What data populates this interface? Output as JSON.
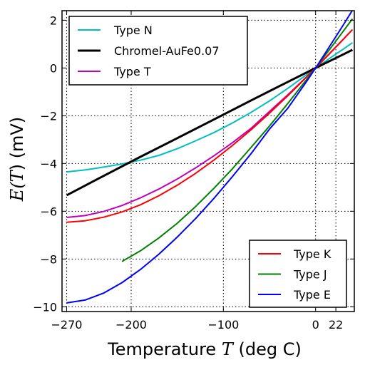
{
  "chart_data": {
    "type": "line",
    "xlabel_prefix": "Temperature ",
    "xlabel_math": "T",
    "xlabel_suffix": " (deg C)",
    "ylabel_prefix": "E(",
    "ylabel_math": "T",
    "ylabel_suffix": ")  (mV)",
    "xlim": [
      -275,
      42
    ],
    "ylim": [
      -10.2,
      2.4
    ],
    "xticks": [
      -270,
      -200,
      -100,
      0,
      22
    ],
    "xtick_labels": [
      "−270",
      "−200",
      "−100",
      "0",
      "22"
    ],
    "yticks": [
      2,
      0,
      -2,
      -4,
      -6,
      -8,
      -10
    ],
    "ytick_labels": [
      "2",
      "0",
      "−2",
      "−4",
      "−6",
      "−8",
      "−10"
    ],
    "grid": true,
    "legends": [
      {
        "placement": "top-left",
        "series": [
          0,
          1,
          2
        ]
      },
      {
        "placement": "bottom-right",
        "series": [
          3,
          4,
          5
        ]
      }
    ],
    "series": [
      {
        "name": "Type N",
        "color": "#00bfbf",
        "linewidth": 2,
        "x": [
          -270,
          -250,
          -230,
          -210,
          -190,
          -170,
          -150,
          -130,
          -110,
          -90,
          -70,
          -50,
          -30,
          -10,
          0,
          10,
          20,
          30,
          40
        ],
        "y": [
          -4.35,
          -4.27,
          -4.15,
          -4.02,
          -3.86,
          -3.66,
          -3.38,
          -3.05,
          -2.7,
          -2.3,
          -1.86,
          -1.38,
          -0.85,
          -0.29,
          0,
          0.26,
          0.53,
          0.79,
          1.06
        ]
      },
      {
        "name": "Chromel-AuFe0.07",
        "color": "#000000",
        "linewidth": 3,
        "x": [
          -270,
          -230,
          -190,
          -150,
          -110,
          -70,
          -30,
          0,
          10,
          20,
          30,
          40
        ],
        "y": [
          -5.33,
          -4.52,
          -3.72,
          -2.94,
          -2.15,
          -1.36,
          -0.58,
          0,
          0.19,
          0.38,
          0.57,
          0.76
        ]
      },
      {
        "name": "Type T",
        "color": "#bf00bf",
        "linewidth": 2,
        "x": [
          -270,
          -250,
          -230,
          -210,
          -190,
          -170,
          -150,
          -130,
          -110,
          -90,
          -70,
          -50,
          -30,
          -10,
          0,
          10,
          20,
          30,
          40
        ],
        "y": [
          -6.26,
          -6.18,
          -6.01,
          -5.76,
          -5.44,
          -5.07,
          -4.65,
          -4.18,
          -3.67,
          -3.12,
          -2.53,
          -1.82,
          -1.12,
          -0.38,
          0,
          0.39,
          0.79,
          1.2,
          1.61
        ]
      },
      {
        "name": "Type K",
        "color": "#ff0000",
        "linewidth": 2,
        "x": [
          -270,
          -250,
          -230,
          -210,
          -190,
          -170,
          -150,
          -130,
          -110,
          -90,
          -70,
          -50,
          -30,
          -10,
          0,
          10,
          20,
          30,
          40
        ],
        "y": [
          -6.46,
          -6.4,
          -6.25,
          -6.03,
          -5.73,
          -5.35,
          -4.91,
          -4.41,
          -3.85,
          -3.24,
          -2.59,
          -1.89,
          -1.16,
          -0.39,
          0,
          0.4,
          0.8,
          1.2,
          1.61
        ]
      },
      {
        "name": "Type J",
        "color": "#008000",
        "linewidth": 2,
        "x": [
          -210,
          -190,
          -170,
          -150,
          -130,
          -110,
          -90,
          -70,
          -50,
          -30,
          -10,
          0,
          10,
          20,
          30,
          40
        ],
        "y": [
          -8.1,
          -7.66,
          -7.12,
          -6.5,
          -5.8,
          -5.03,
          -4.21,
          -3.33,
          -2.43,
          -1.48,
          -0.5,
          0,
          0.51,
          1.02,
          1.54,
          2.06
        ]
      },
      {
        "name": "Type E",
        "color": "#0000ff",
        "linewidth": 2,
        "x": [
          -270,
          -250,
          -230,
          -210,
          -190,
          -170,
          -150,
          -130,
          -110,
          -90,
          -70,
          -50,
          -30,
          -10,
          0,
          10,
          20,
          30,
          40
        ],
        "y": [
          -9.84,
          -9.72,
          -9.43,
          -8.99,
          -8.44,
          -7.8,
          -7.08,
          -6.3,
          -5.45,
          -4.54,
          -3.59,
          -2.56,
          -1.68,
          -0.58,
          0,
          0.59,
          1.19,
          1.8,
          2.42
        ]
      }
    ]
  }
}
